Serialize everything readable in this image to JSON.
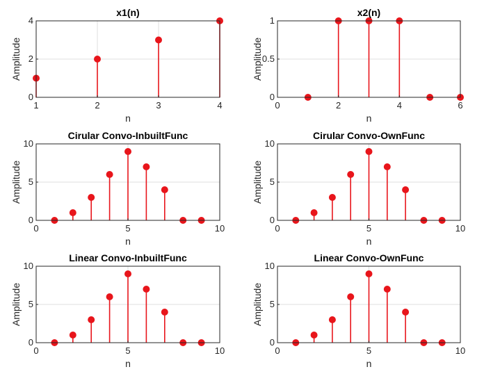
{
  "chart_data": [
    {
      "type": "stem",
      "title": "x1(n)",
      "xlabel": "n",
      "ylabel": "Amplitude",
      "xlim": [
        1,
        4
      ],
      "ylim": [
        0,
        4
      ],
      "xticks": [
        1,
        2,
        3,
        4
      ],
      "yticks": [
        0,
        2,
        4
      ],
      "x": [
        1,
        2,
        3,
        4
      ],
      "values": [
        1,
        2,
        3,
        4
      ],
      "grid": true,
      "color": "#e8151b"
    },
    {
      "type": "stem",
      "title": "x2(n)",
      "xlabel": "n",
      "ylabel": "Amplitude",
      "xlim": [
        0,
        6
      ],
      "ylim": [
        0,
        1
      ],
      "xticks": [
        0,
        2,
        4,
        6
      ],
      "yticks": [
        0,
        0.5,
        1
      ],
      "x": [
        1,
        2,
        3,
        4,
        5,
        6
      ],
      "values": [
        0,
        1,
        1,
        1,
        0,
        0
      ],
      "grid": true,
      "color": "#e8151b"
    },
    {
      "type": "stem",
      "title": "Cirular Convo-InbuiltFunc",
      "xlabel": "n",
      "ylabel": "Amplitude",
      "xlim": [
        0,
        10
      ],
      "ylim": [
        0,
        10
      ],
      "xticks": [
        0,
        5,
        10
      ],
      "yticks": [
        0,
        5,
        10
      ],
      "x": [
        1,
        2,
        3,
        4,
        5,
        6,
        7,
        8,
        9
      ],
      "values": [
        0,
        1,
        3,
        6,
        9,
        7,
        4,
        0,
        0
      ],
      "grid": true,
      "color": "#e8151b"
    },
    {
      "type": "stem",
      "title": "Cirular Convo-OwnFunc",
      "xlabel": "n",
      "ylabel": "Amplitude",
      "xlim": [
        0,
        10
      ],
      "ylim": [
        0,
        10
      ],
      "xticks": [
        0,
        5,
        10
      ],
      "yticks": [
        0,
        5,
        10
      ],
      "x": [
        1,
        2,
        3,
        4,
        5,
        6,
        7,
        8,
        9
      ],
      "values": [
        0,
        1,
        3,
        6,
        9,
        7,
        4,
        0,
        0
      ],
      "grid": true,
      "color": "#e8151b"
    },
    {
      "type": "stem",
      "title": "Linear Convo-InbuiltFunc",
      "xlabel": "n",
      "ylabel": "Amplitude",
      "xlim": [
        0,
        10
      ],
      "ylim": [
        0,
        10
      ],
      "xticks": [
        0,
        5,
        10
      ],
      "yticks": [
        0,
        5,
        10
      ],
      "x": [
        1,
        2,
        3,
        4,
        5,
        6,
        7,
        8,
        9
      ],
      "values": [
        0,
        1,
        3,
        6,
        9,
        7,
        4,
        0,
        0
      ],
      "grid": true,
      "color": "#e8151b"
    },
    {
      "type": "stem",
      "title": "Linear Convo-OwnFunc",
      "xlabel": "n",
      "ylabel": "Amplitude",
      "xlim": [
        0,
        10
      ],
      "ylim": [
        0,
        10
      ],
      "xticks": [
        0,
        5,
        10
      ],
      "yticks": [
        0,
        5,
        10
      ],
      "x": [
        1,
        2,
        3,
        4,
        5,
        6,
        7,
        8,
        9
      ],
      "values": [
        0,
        1,
        3,
        6,
        9,
        7,
        4,
        0,
        0
      ],
      "grid": true,
      "color": "#e8151b"
    }
  ]
}
